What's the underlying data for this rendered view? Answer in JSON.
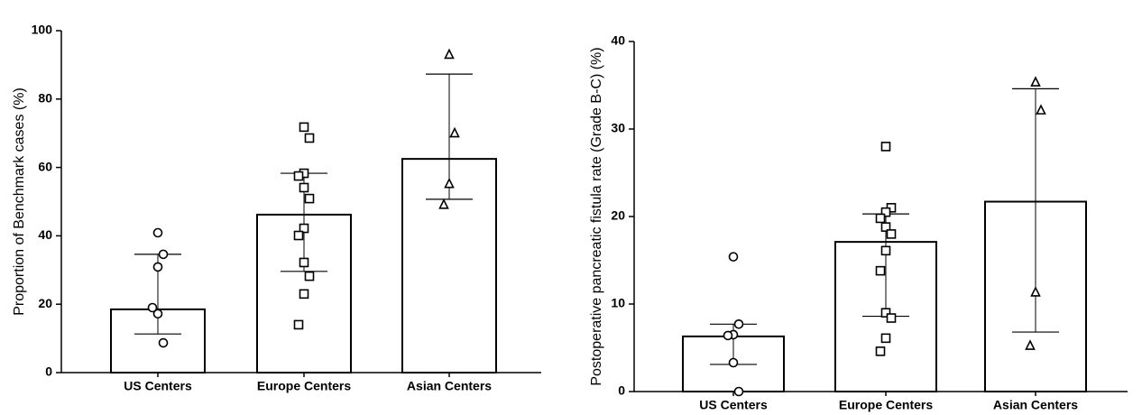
{
  "chart_data": [
    {
      "type": "bar",
      "ylabel": "Proportion of Benchmark cases  (%)",
      "categories": [
        "US Centers",
        "Europe Centers",
        "Asian Centers"
      ],
      "values": [
        18.5,
        46.2,
        62.5
      ],
      "err_low": [
        11.3,
        29.6,
        50.7
      ],
      "err_high": [
        34.6,
        58.3,
        87.3
      ],
      "points": [
        [
          40.9,
          34.6,
          30.9,
          19,
          17.2,
          8.7
        ],
        [
          71.8,
          68.6,
          58.3,
          57.5,
          54.1,
          50.9,
          42.2,
          40.1,
          32.2,
          28.2,
          23,
          14
        ],
        [
          92.9,
          69.9,
          55.1,
          49
        ]
      ],
      "markers": [
        "circle",
        "square",
        "triangle"
      ],
      "color": "#ffffff",
      "edgecolor": "#000000",
      "ylim": [
        0,
        100
      ],
      "yticks": [
        0,
        20,
        40,
        60,
        80,
        100
      ]
    },
    {
      "type": "bar",
      "ylabel": "Postoperative pancreatic fistula rate (Grade B-C) (%)",
      "categories": [
        "US Centers",
        "Europe Centers",
        "Asian Centers"
      ],
      "values": [
        6.3,
        17.1,
        21.7
      ],
      "err_low": [
        3.1,
        8.6,
        6.8
      ],
      "err_high": [
        7.7,
        20.3,
        34.6
      ],
      "points": [
        [
          15.4,
          7.7,
          6.5,
          6.4,
          3.3,
          0
        ],
        [
          28,
          21,
          20.5,
          19.8,
          18.8,
          18,
          16.1,
          13.8,
          9,
          8.4,
          6.1,
          4.6
        ],
        [
          35.3,
          32.1,
          11.3,
          5.2
        ]
      ],
      "markers": [
        "circle",
        "square",
        "triangle"
      ],
      "color": "#ffffff",
      "edgecolor": "#000000",
      "ylim": [
        0,
        40
      ],
      "yticks": [
        0,
        10,
        20,
        30,
        40
      ]
    }
  ]
}
